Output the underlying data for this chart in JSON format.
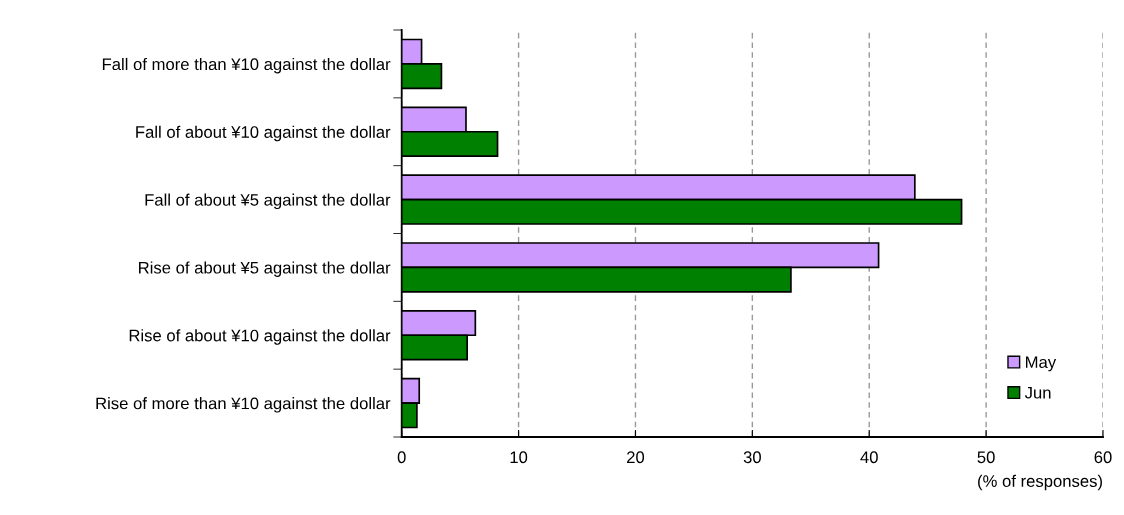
{
  "chart_data": {
    "type": "bar",
    "orientation": "horizontal",
    "xlabel": "(% of responses)",
    "categories": [
      "Fall of more than ¥10 against the dollar",
      "Fall of about ¥10 against the dollar",
      "Fall of about ¥5 against the dollar",
      "Rise of about ¥5 against the dollar",
      "Rise of about ¥10 against the dollar",
      "Rise of more than ¥10 against the dollar"
    ],
    "series": [
      {
        "name": "May",
        "color": "#cc99ff",
        "values": [
          1.7,
          5.5,
          43.9,
          40.8,
          6.3,
          1.5
        ]
      },
      {
        "name": "Jun",
        "color": "#008000",
        "values": [
          3.4,
          8.2,
          47.9,
          33.3,
          5.6,
          1.3
        ]
      }
    ],
    "xlim": [
      0,
      60
    ],
    "xticks": [
      0,
      10,
      20,
      30,
      40,
      50,
      60
    ],
    "grid": "x",
    "legend": "bottom right"
  }
}
